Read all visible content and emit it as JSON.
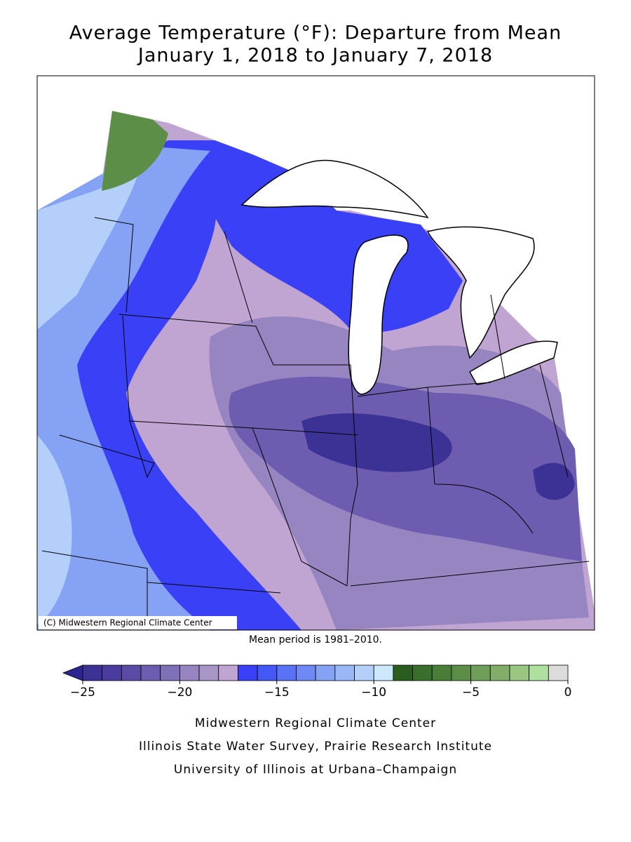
{
  "header": {
    "title": "Average Temperature (°F): Departure from Mean",
    "subtitle": "January 1, 2018 to January 7, 2018"
  },
  "map": {
    "credit": "(C) Midwestern Regional Climate Center",
    "note": "Mean period is 1981–2010."
  },
  "colorbar": {
    "lim": [
      -25,
      0
    ],
    "under_color": "#2c2690",
    "colors": [
      "#3c3296",
      "#4a3c9e",
      "#5b4aa6",
      "#6e5cb0",
      "#8070b8",
      "#9685c0",
      "#a996c8",
      "#c0a4d2",
      "#3a40f5",
      "#4458f5",
      "#5a72f5",
      "#6e88f5",
      "#86a2f5",
      "#9ab8f8",
      "#b4d0fa",
      "#cce8fa",
      "#2a5e1e",
      "#3a6e2c",
      "#4a7e38",
      "#5c8e48",
      "#6e9e58",
      "#82ae6a",
      "#9ac682",
      "#b0e0a0",
      "#dcdcdc"
    ],
    "ticks": [
      {
        "value": -25,
        "label": "−25"
      },
      {
        "value": -20,
        "label": "−20"
      },
      {
        "value": -15,
        "label": "−15"
      },
      {
        "value": -10,
        "label": "−10"
      },
      {
        "value": -5,
        "label": "−5"
      },
      0
    ]
  },
  "footer": {
    "lines": [
      "Midwestern Regional Climate Center",
      "Illinois State Water Survey, Prairie Research Institute",
      "University of Illinois at Urbana–Champaign"
    ]
  }
}
